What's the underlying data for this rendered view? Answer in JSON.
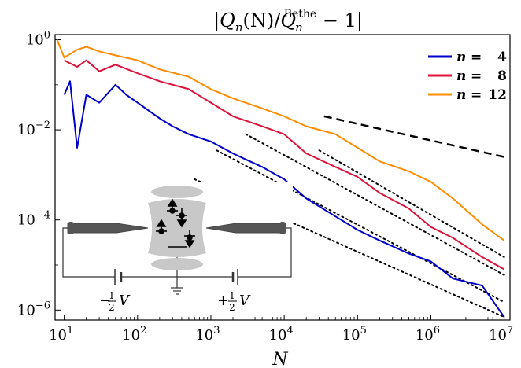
{
  "chart_data": {
    "type": "line",
    "title": "|Q_n(N)/Q_n^Bethe − 1|",
    "title_parts": {
      "main": "Q",
      "sub": "n",
      "args": "(N)/",
      "main2": "Q",
      "sub2": "n",
      "sup2": "Bethe",
      "tail": " − 1"
    },
    "xlabel": "N",
    "ylabel": "",
    "xscale": "log",
    "yscale": "log",
    "xlim": [
      7.5,
      12000000
    ],
    "ylim": [
      6e-07,
      1.3
    ],
    "x_ticks": [
      {
        "base": "10",
        "exp": "1"
      },
      {
        "base": "10",
        "exp": "2"
      },
      {
        "base": "10",
        "exp": "3"
      },
      {
        "base": "10",
        "exp": "4"
      },
      {
        "base": "10",
        "exp": "5"
      },
      {
        "base": "10",
        "exp": "6"
      },
      {
        "base": "10",
        "exp": "7"
      }
    ],
    "y_ticks": [
      {
        "base": "10",
        "exp": "0"
      },
      {
        "base": "10",
        "exp": "−2"
      },
      {
        "base": "10",
        "exp": "−4"
      },
      {
        "base": "10",
        "exp": "−6"
      }
    ],
    "legend_position": "top-right",
    "grid": false,
    "series": [
      {
        "name": "n = 4",
        "name_var": "n",
        "name_eq": "=",
        "name_val": "4",
        "color": "#0000c8",
        "x": [
          10,
          12,
          15,
          20,
          30,
          50,
          70,
          100,
          200,
          300,
          500,
          1000,
          2000,
          3000,
          5000,
          10000,
          20000,
          50000,
          100000,
          200000,
          500000,
          1000000,
          2000000,
          5000000,
          10000000
        ],
        "y": [
          0.06,
          0.12,
          0.004,
          0.06,
          0.04,
          0.1,
          0.06,
          0.04,
          0.018,
          0.012,
          0.008,
          0.0055,
          0.003,
          0.0022,
          0.0015,
          0.0008,
          0.0003,
          0.00012,
          6e-05,
          3.5e-05,
          1.8e-05,
          1.2e-05,
          5e-06,
          3.5e-06,
          7e-07
        ]
      },
      {
        "name": "n = 8",
        "name_var": "n",
        "name_eq": "=",
        "name_val": "8",
        "color": "#dc143c",
        "x": [
          10,
          15,
          20,
          30,
          50,
          100,
          200,
          500,
          1000,
          2000,
          5000,
          10000,
          20000,
          50000,
          100000,
          200000,
          500000,
          1000000,
          2000000,
          5000000,
          10000000
        ],
        "y": [
          0.35,
          0.25,
          0.35,
          0.2,
          0.28,
          0.18,
          0.12,
          0.08,
          0.04,
          0.02,
          0.012,
          0.008,
          0.003,
          0.0015,
          0.0009,
          0.0004,
          0.00018,
          7e-05,
          4e-05,
          1.5e-05,
          8e-06
        ]
      },
      {
        "name": "n = 12",
        "name_var": "n",
        "name_eq": "=",
        "name_val": "12",
        "color": "#ff8c00",
        "x": [
          8,
          10,
          15,
          20,
          30,
          50,
          100,
          200,
          500,
          1000,
          2000,
          5000,
          10000,
          20000,
          50000,
          100000,
          200000,
          500000,
          1000000,
          2000000,
          5000000,
          10000000
        ],
        "y": [
          1.0,
          0.4,
          0.6,
          0.7,
          0.55,
          0.45,
          0.35,
          0.22,
          0.15,
          0.08,
          0.05,
          0.03,
          0.02,
          0.012,
          0.008,
          0.004,
          0.002,
          0.0012,
          0.0007,
          0.0003,
          8e-05,
          3.5e-05
        ]
      }
    ],
    "guide_lines": [
      {
        "style": "dashed",
        "x": [
          35000,
          10000000
        ],
        "y": [
          0.02,
          0.0025
        ]
      },
      {
        "style": "dotted",
        "x": [
          600,
          10000000
        ],
        "y": [
          0.0008,
          7e-07
        ]
      },
      {
        "style": "dotted",
        "x": [
          1200,
          10000000
        ],
        "y": [
          0.0035,
          1.5e-06
        ]
      },
      {
        "style": "dotted",
        "x": [
          3000,
          10000000
        ],
        "y": [
          0.008,
          6e-06
        ]
      },
      {
        "style": "dotted",
        "x": [
          30000,
          10000000
        ],
        "y": [
          0.0035,
          1.5e-05
        ]
      }
    ],
    "inset": {
      "left_voltage": {
        "sign": "−",
        "frac_num": "1",
        "frac_den": "2",
        "var": "V"
      },
      "right_voltage": {
        "sign": "+",
        "frac_num": "1",
        "frac_den": "2",
        "var": "V"
      }
    }
  }
}
